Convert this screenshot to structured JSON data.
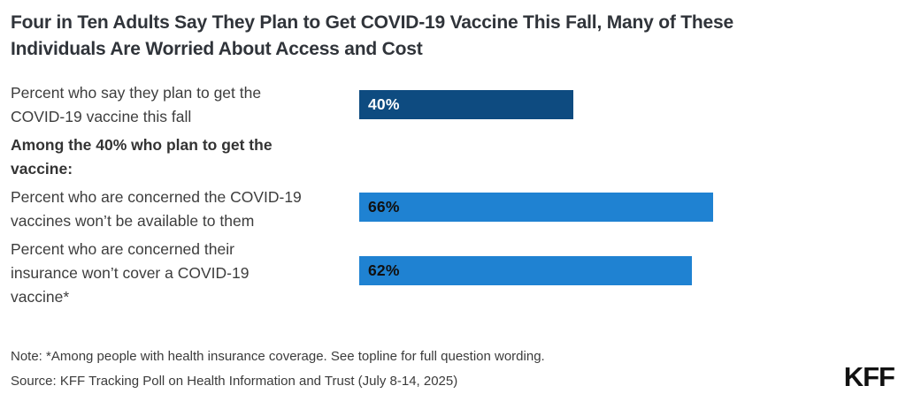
{
  "title": "Four in Ten Adults Say They Plan to Get COVID-19 Vaccine This Fall, Many of These\nIndividuals Are Worried About Access and Cost",
  "chart_data": {
    "type": "bar",
    "orientation": "horizontal",
    "unit": "%",
    "xlim": [
      0,
      100
    ],
    "title": "Four in Ten Adults Say They Plan to Get COVID-19 Vaccine This Fall, Many of These Individuals Are Worried About Access and Cost",
    "categories": [
      "Percent who say they plan to get the COVID-19 vaccine this fall",
      "Percent who are concerned the COVID-19 vaccines won’t be available to them",
      "Percent who are concerned their insurance won’t cover a COVID-19 vaccine*"
    ],
    "values": [
      40,
      66,
      62
    ],
    "section_heading": "Among the 40% who plan to get the\nvaccine:",
    "bars": [
      {
        "label": "Percent who say they plan to get the\nCOVID-19 vaccine this fall",
        "value": 40,
        "display": "40%",
        "color": "#0e4b80",
        "text_color": "#ffffff"
      },
      {
        "label": "Percent who are concerned the COVID-19\nvaccines won’t be available to them",
        "value": 66,
        "display": "66%",
        "color": "#1f82d2",
        "text_color": "#111111"
      },
      {
        "label": "Percent who are concerned their\ninsurance won’t cover a COVID-19\nvaccine*",
        "value": 62,
        "display": "62%",
        "color": "#1f82d2",
        "text_color": "#111111"
      }
    ],
    "colors": {
      "dark_blue": "#0e4b80",
      "light_blue": "#1f82d2"
    }
  },
  "note": "Note: *Among people with health insurance coverage. See topline for full question wording.",
  "source": "Source: KFF Tracking Poll on Health Information and Trust (July 8-14, 2025)",
  "logo": {
    "text": "KFF"
  }
}
